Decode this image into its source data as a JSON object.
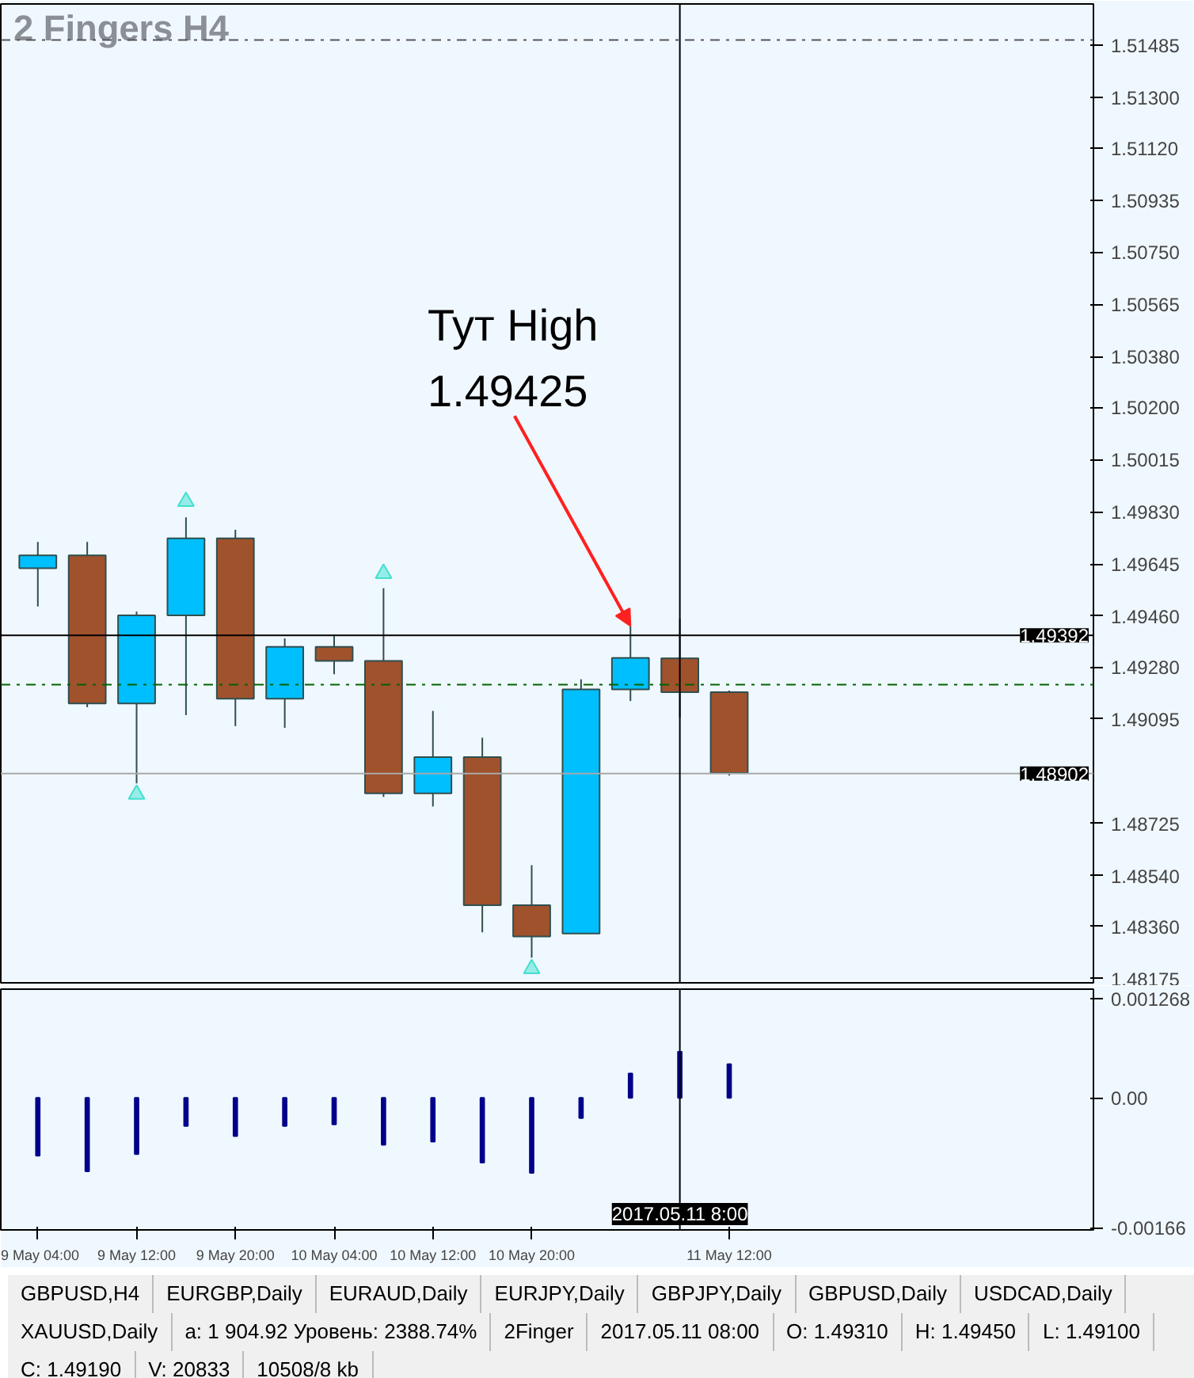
{
  "chart_data": [
    {
      "type": "candlestick",
      "title": "2 Fingers H4",
      "x": [
        "2017-05-09T04:00",
        "2017-05-09T08:00",
        "2017-05-09T12:00",
        "2017-05-09T16:00",
        "2017-05-09T20:00",
        "2017-05-10T00:00",
        "2017-05-10T04:00",
        "2017-05-10T08:00",
        "2017-05-10T12:00",
        "2017-05-10T16:00",
        "2017-05-10T20:00",
        "2017-05-11T00:00",
        "2017-05-11T04:00",
        "2017-05-11T08:00",
        "2017-05-11T12:00"
      ],
      "ohlc": [
        [
          1.4963,
          1.49723,
          1.49494,
          1.49675
        ],
        [
          1.49675,
          1.49723,
          1.49137,
          1.4915
        ],
        [
          1.4915,
          1.49476,
          1.48867,
          1.49463
        ],
        [
          1.49463,
          1.4981,
          1.49109,
          1.49736
        ],
        [
          1.49736,
          1.49766,
          1.4907,
          1.49167
        ],
        [
          1.49167,
          1.49381,
          1.49064,
          1.49351
        ],
        [
          1.49351,
          1.49394,
          1.49254,
          1.49301
        ],
        [
          1.49301,
          1.49559,
          1.48819,
          1.48832
        ],
        [
          1.48832,
          1.49124,
          1.48785,
          1.4896
        ],
        [
          1.4896,
          1.49029,
          1.48339,
          1.48435
        ],
        [
          1.48435,
          1.48577,
          1.48249,
          1.48324
        ],
        [
          1.48335,
          1.49236,
          1.48335,
          1.492
        ],
        [
          1.492,
          1.49425,
          1.49159,
          1.49312
        ],
        [
          1.4931,
          1.4945,
          1.491,
          1.4919
        ],
        [
          1.4919,
          1.49196,
          1.48895,
          1.48904
        ]
      ],
      "colors": [
        "#00bfff",
        "#a0522d",
        "#00bfff",
        "#00bfff",
        "#a0522d",
        "#00bfff",
        "#a0522d",
        "#a0522d",
        "#00bfff",
        "#a0522d",
        "#a0522d",
        "#00bfff",
        "#00bfff",
        "#a0522d",
        "#a0522d"
      ],
      "series": [
        {
          "type": "scatter",
          "color": "#40e0d0",
          "marker": "triangle",
          "x": [
            "2017-05-09T16:00",
            "2017-05-10T08:00"
          ],
          "values": [
            1.49866,
            1.49611
          ]
        },
        {
          "type": "scatter",
          "color": "#40e0d0",
          "marker": "triangle",
          "x": [
            "2017-05-09T12:00",
            "2017-05-10T20:00"
          ],
          "values": [
            1.48828,
            1.4821
          ]
        }
      ],
      "xlim": [
        "2017-05-09T01:00",
        "2017-05-12T17:30"
      ],
      "ylim": [
        1.4816,
        1.5163
      ],
      "yticks": [
        1.51485,
        {
          "value": 1.513,
          "label": "1.51300"
        },
        {
          "value": 1.5112,
          "label": "1.51120"
        },
        1.50935,
        {
          "value": 1.5075,
          "label": "1.50750"
        },
        1.50565,
        {
          "value": 1.5038,
          "label": "1.50380"
        },
        {
          "value": 1.502,
          "label": "1.50200"
        },
        1.50015,
        {
          "value": 1.4983,
          "label": "1.49830"
        },
        1.49645,
        {
          "value": 1.4946,
          "label": "1.49460"
        },
        {
          "value": 1.4928,
          "label": "1.49280"
        },
        1.49095,
        1.48725,
        {
          "value": 1.4854,
          "label": "1.48540"
        },
        {
          "value": 1.4836,
          "label": "1.48360"
        },
        1.48175
      ],
      "tick_labels": "y",
      "grid": false,
      "ref_lines": [
        {
          "axis": "y",
          "value": 1.49392,
          "label": "1.49392",
          "color": "#000000",
          "line_style": "solid"
        },
        {
          "axis": "y",
          "value": 1.48902,
          "label": "1.48902",
          "color": "#a9a9a9",
          "line_style": "solid"
        },
        {
          "axis": "y",
          "value": 1.49217,
          "label": null,
          "color": "#006400",
          "line_style": "dashdot"
        },
        {
          "axis": "y",
          "value": 1.51502,
          "label": null,
          "color": "#555555",
          "line_style": "dashdot"
        },
        {
          "axis": "x",
          "value": "2017-05-11T08:00",
          "label": null,
          "color": "#000000",
          "line_style": "solid"
        }
      ],
      "annotations": [
        {
          "text": "Тут High\n1.49425",
          "x": "2017-05-11T04:00",
          "y": 1.49425
        }
      ]
    },
    {
      "type": "bar",
      "color": "#00008b",
      "x": [
        "2017-05-09T04:00",
        "2017-05-09T08:00",
        "2017-05-09T12:00",
        "2017-05-09T16:00",
        "2017-05-09T20:00",
        "2017-05-10T00:00",
        "2017-05-10T04:00",
        "2017-05-10T08:00",
        "2017-05-10T12:00",
        "2017-05-10T16:00",
        "2017-05-10T20:00",
        "2017-05-11T00:00",
        "2017-05-11T04:00",
        "2017-05-11T08:00",
        "2017-05-11T12:00"
      ],
      "values": [
        -0.00074,
        -0.00094,
        -0.00072,
        -0.00036,
        -0.00049,
        -0.00036,
        -0.00034,
        -0.0006,
        -0.00056,
        -0.00083,
        -0.00096,
        -0.00026,
        0.00031,
        0.00059,
        0.00043
      ],
      "xlim": [
        "2017-05-09T01:00",
        "2017-05-12T17:30"
      ],
      "xticks": [
        {
          "value": "2017-05-09T04:00",
          "label": "9 May 04:00"
        },
        {
          "value": "2017-05-09T12:00",
          "label": "9 May 12:00"
        },
        {
          "value": "2017-05-09T20:00",
          "label": "9 May 20:00"
        },
        {
          "value": "2017-05-10T04:00",
          "label": "10 May 04:00"
        },
        {
          "value": "2017-05-10T12:00",
          "label": "10 May 12:00"
        },
        {
          "value": "2017-05-10T20:00",
          "label": "10 May 20:00"
        },
        {
          "value": "2017-05-11T12:00",
          "label": "11 May 12:00"
        }
      ],
      "ylim": [
        -0.00169,
        0.00139
      ],
      "yticks": [
        0.001268,
        {
          "value": 0,
          "label": "0.00"
        },
        {
          "value": -0.00166,
          "label": "-0.00166"
        }
      ],
      "grid": false,
      "ref_lines": [
        {
          "axis": "x",
          "value": "2017-05-11T08:00",
          "label": "2017.05.11 8:00",
          "color": "#000000",
          "line_style": "solid"
        }
      ],
      "annotations": [
        "GBPUSD,H4",
        "EURGBP,Daily",
        "EURAUD,Daily",
        "EURJPY,Daily",
        "GBPJPY,Daily",
        "GBPUSD,Daily",
        "USDCAD,Daily",
        "XAUUSD,Daily",
        "а: 1 904.92  Уровень: 2388.74%",
        "2Finger",
        "2017.05.11 08:00",
        "O: 1.49310",
        "H: 1.49450",
        "L: 1.49100",
        "C: 1.49190",
        "V: 20833",
        "10508/8 kb"
      ]
    }
  ]
}
